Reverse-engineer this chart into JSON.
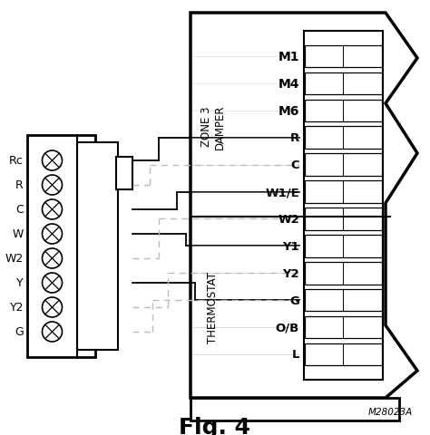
{
  "title": "Fig. 4",
  "model_no": "M28023A",
  "bg_color": "#ffffff",
  "line_color": "#000000",
  "gray_color": "#bbbbbb",
  "left_labels": [
    "Rc",
    "R",
    "C",
    "W",
    "W2",
    "Y",
    "Y2",
    "G"
  ],
  "right_labels_zone3": [
    "M1",
    "M4",
    "M6"
  ],
  "right_labels_thermostat": [
    "R",
    "C",
    "W1/E",
    "W2",
    "Y1",
    "Y2",
    "G",
    "O/B",
    "L"
  ],
  "zone3_text": "ZONE 3\nDAMPER",
  "thermostat_text": "THERMOSTAT",
  "figsize": [
    4.74,
    4.81
  ],
  "dpi": 100
}
